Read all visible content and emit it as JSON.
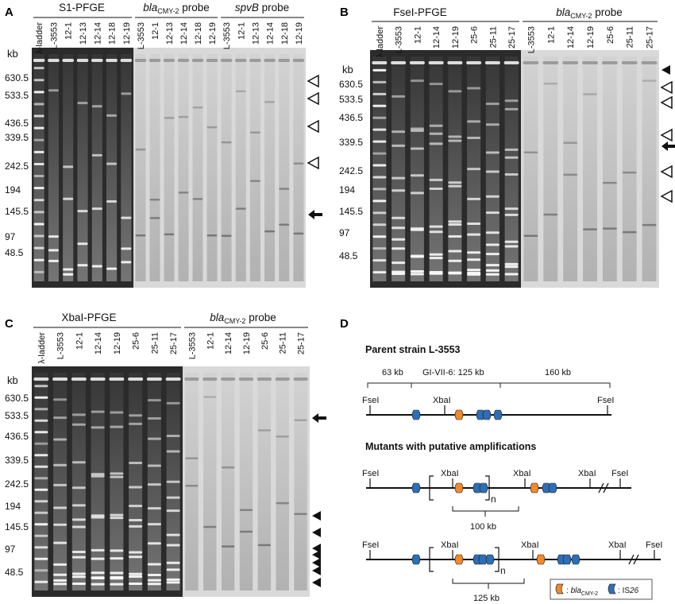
{
  "panels": [
    {
      "letter": "A",
      "gels": [
        {
          "title": "S1-PFGE",
          "lanes": [
            "λ-ladder",
            "L-3553",
            "12-1",
            "12-13",
            "12-14",
            "12-18",
            "12-19"
          ],
          "kind": "eb"
        },
        {
          "title": "bla",
          "title_sub": "CMY-2",
          "title_tail": " probe",
          "lanes": [
            "L-3553",
            "12-1",
            "12-13",
            "12-14",
            "12-18",
            "12-19"
          ],
          "kind": "probe"
        },
        {
          "title": "spvB",
          "title_tail": " probe",
          "lanes": [
            "L-3553",
            "12-1",
            "12-13",
            "12-14",
            "12-18",
            "12-19"
          ],
          "kind": "probe"
        }
      ],
      "kb_label": "kb",
      "sizes": [
        "630.5",
        "533.5",
        "436.5",
        "339.5",
        "242.5",
        "194",
        "145.5",
        "97",
        "48.5"
      ],
      "markers": [
        {
          "type": "open-triangle",
          "size": "630.5"
        },
        {
          "type": "open-triangle",
          "size": "533.5"
        },
        {
          "type": "open-triangle",
          "size": "436.5"
        },
        {
          "type": "open-triangle",
          "size": "275"
        },
        {
          "type": "arrow",
          "size": "145.5"
        }
      ]
    },
    {
      "letter": "B",
      "gels": [
        {
          "title": "FseI-PFGE",
          "lanes": [
            "λ-ladder",
            "L-3553",
            "12-1",
            "12-14",
            "12-19",
            "25-6",
            "25-11",
            "25-17"
          ],
          "kind": "eb"
        },
        {
          "title": "bla",
          "title_sub": "CMY-2",
          "title_tail": " probe",
          "lanes": [
            "L-3553",
            "12-1",
            "12-14",
            "12-19",
            "25-6",
            "25-11",
            "25-17"
          ],
          "kind": "probe"
        }
      ],
      "kb_label": "kb",
      "sizes": [
        "630.5",
        "533.5",
        "436.5",
        "339.5",
        "242.5",
        "194",
        "145.5",
        "97",
        "48.5"
      ],
      "markers": [
        {
          "type": "filled-triangle",
          "size": "top"
        },
        {
          "type": "open-triangle",
          "size": "630.5"
        },
        {
          "type": "open-triangle",
          "size": "533.5"
        },
        {
          "type": "open-triangle",
          "size": "390"
        },
        {
          "type": "arrow",
          "size": "339.5"
        },
        {
          "type": "open-triangle",
          "size": "242.5"
        },
        {
          "type": "open-triangle",
          "size": "194"
        }
      ]
    },
    {
      "letter": "C",
      "gels": [
        {
          "title": "XbaI-PFGE",
          "lanes": [
            "λ-ladder",
            "L-3553",
            "12-1",
            "12-14",
            "12-19",
            "25-6",
            "25-11",
            "25-17"
          ],
          "kind": "eb"
        },
        {
          "title": "bla",
          "title_sub": "CMY-2",
          "title_tail": " probe",
          "lanes": [
            "L-3553",
            "12-1",
            "12-14",
            "12-19",
            "25-6",
            "25-11",
            "25-17"
          ],
          "kind": "probe"
        }
      ],
      "kb_label": "kb",
      "sizes": [
        "630.5",
        "533.5",
        "436.5",
        "339.5",
        "242.5",
        "194",
        "145.5",
        "97",
        "48.5"
      ],
      "markers": [
        {
          "type": "arrow",
          "size": "533.5"
        },
        {
          "type": "filled-triangle",
          "size": "194"
        },
        {
          "type": "filled-triangle",
          "size": "145.5"
        },
        {
          "type": "filled-triangle",
          "size": "97"
        },
        {
          "type": "filled-triangle",
          "size": "85"
        },
        {
          "type": "filled-triangle",
          "size": "70"
        },
        {
          "type": "filled-triangle",
          "size": "55"
        },
        {
          "type": "filled-triangle",
          "size": "40"
        }
      ]
    },
    {
      "letter": "D",
      "parent_title": "Parent strain L-3553",
      "seg1": "63 kb",
      "seg2": "GI-VII-6: 125 kb",
      "seg3": "160 kb",
      "fsei": "FseI",
      "xbai": "XbaI",
      "mutants_title": "Mutants with putative amplifications",
      "n_label": "n",
      "len1": "100 kb",
      "len2": "125 kb",
      "legend_bla": "bla",
      "legend_bla_sub": "CMY-2",
      "legend_is": "IS",
      "legend_is_num": "26",
      "colors": {
        "bla": "#f08a2c",
        "is26": "#2d6fb6"
      }
    }
  ]
}
